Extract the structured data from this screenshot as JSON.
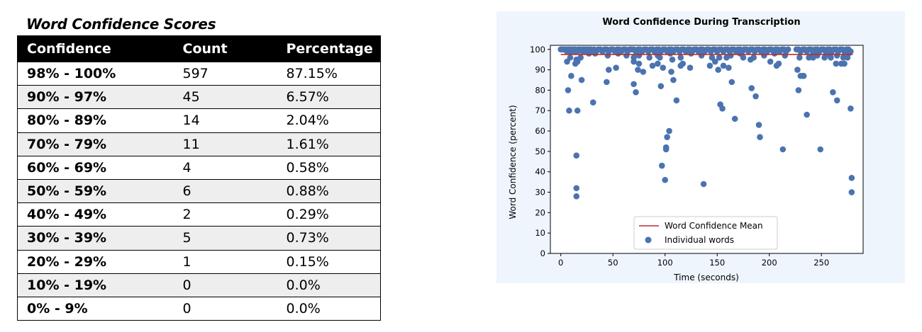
{
  "table": {
    "title": "Word Confidence Scores",
    "headers": [
      "Confidence",
      "Count",
      "Percentage"
    ],
    "rows": [
      {
        "range": "98% - 100%",
        "count": "597",
        "percentage": "87.15%"
      },
      {
        "range": "90% - 97%",
        "count": "45",
        "percentage": "6.57%"
      },
      {
        "range": "80% - 89%",
        "count": "14",
        "percentage": "2.04%"
      },
      {
        "range": "70% - 79%",
        "count": "11",
        "percentage": "1.61%"
      },
      {
        "range": "60% - 69%",
        "count": "4",
        "percentage": "0.58%"
      },
      {
        "range": "50% - 59%",
        "count": "6",
        "percentage": "0.88%"
      },
      {
        "range": "40% - 49%",
        "count": "2",
        "percentage": "0.29%"
      },
      {
        "range": "30% - 39%",
        "count": "5",
        "percentage": "0.73%"
      },
      {
        "range": "20% - 29%",
        "count": "1",
        "percentage": "0.15%"
      },
      {
        "range": "10% - 19%",
        "count": "0",
        "percentage": "0.0%"
      },
      {
        "range": "0% - 9%",
        "count": "0",
        "percentage": "0.0%"
      }
    ]
  },
  "chart_data": {
    "type": "scatter",
    "title": "Word Confidence During Transcription",
    "xlabel": "Time (seconds)",
    "ylabel": "Word Confidence (percent)",
    "xlim": [
      -10,
      290
    ],
    "ylim": [
      0,
      102
    ],
    "xticks": [
      0,
      50,
      100,
      150,
      200,
      250
    ],
    "yticks": [
      0,
      10,
      20,
      30,
      40,
      50,
      60,
      70,
      80,
      90,
      100
    ],
    "grid": false,
    "legend_position": "lower-center",
    "colors": {
      "points": "#4a73b0",
      "mean_line": "#c0282d",
      "background": "#eef5fd"
    },
    "series": [
      {
        "name": "Word Confidence Mean",
        "kind": "line",
        "x": [
          0,
          280
        ],
        "y": [
          97.5,
          97.5
        ]
      },
      {
        "name": "Individual words",
        "kind": "scatter",
        "points": [
          [
            0,
            100
          ],
          [
            1,
            100
          ],
          [
            2,
            100
          ],
          [
            3,
            100
          ],
          [
            5,
            100
          ],
          [
            6,
            99
          ],
          [
            7,
            100
          ],
          [
            8,
            100
          ],
          [
            9,
            99
          ],
          [
            10,
            100
          ],
          [
            12,
            100
          ],
          [
            13,
            99
          ],
          [
            14,
            100
          ],
          [
            16,
            99
          ],
          [
            17,
            100
          ],
          [
            18,
            100
          ],
          [
            20,
            100
          ],
          [
            21,
            99
          ],
          [
            22,
            100
          ],
          [
            24,
            100
          ],
          [
            25,
            99
          ],
          [
            26,
            100
          ],
          [
            28,
            100
          ],
          [
            29,
            100
          ],
          [
            30,
            99
          ],
          [
            32,
            100
          ],
          [
            34,
            99
          ],
          [
            36,
            100
          ],
          [
            38,
            100
          ],
          [
            40,
            99
          ],
          [
            42,
            100
          ],
          [
            44,
            100
          ],
          [
            46,
            99
          ],
          [
            48,
            100
          ],
          [
            50,
            100
          ],
          [
            52,
            99
          ],
          [
            54,
            100
          ],
          [
            56,
            100
          ],
          [
            58,
            99
          ],
          [
            60,
            100
          ],
          [
            62,
            100
          ],
          [
            64,
            99
          ],
          [
            66,
            100
          ],
          [
            68,
            100
          ],
          [
            70,
            100
          ],
          [
            72,
            99
          ],
          [
            74,
            100
          ],
          [
            76,
            100
          ],
          [
            78,
            99
          ],
          [
            80,
            100
          ],
          [
            82,
            100
          ],
          [
            84,
            99
          ],
          [
            86,
            100
          ],
          [
            88,
            100
          ],
          [
            90,
            99
          ],
          [
            92,
            100
          ],
          [
            94,
            100
          ],
          [
            96,
            99
          ],
          [
            98,
            100
          ],
          [
            100,
            100
          ],
          [
            102,
            99
          ],
          [
            104,
            100
          ],
          [
            106,
            100
          ],
          [
            108,
            99
          ],
          [
            110,
            100
          ],
          [
            112,
            100
          ],
          [
            114,
            99
          ],
          [
            116,
            100
          ],
          [
            118,
            100
          ],
          [
            120,
            99
          ],
          [
            122,
            100
          ],
          [
            124,
            100
          ],
          [
            126,
            99
          ],
          [
            128,
            100
          ],
          [
            130,
            100
          ],
          [
            132,
            99
          ],
          [
            134,
            100
          ],
          [
            136,
            100
          ],
          [
            138,
            99
          ],
          [
            140,
            100
          ],
          [
            142,
            100
          ],
          [
            144,
            99
          ],
          [
            146,
            100
          ],
          [
            148,
            100
          ],
          [
            150,
            99
          ],
          [
            152,
            100
          ],
          [
            154,
            100
          ],
          [
            156,
            99
          ],
          [
            158,
            100
          ],
          [
            160,
            100
          ],
          [
            162,
            99
          ],
          [
            164,
            100
          ],
          [
            166,
            100
          ],
          [
            168,
            99
          ],
          [
            170,
            100
          ],
          [
            172,
            100
          ],
          [
            174,
            99
          ],
          [
            176,
            100
          ],
          [
            178,
            100
          ],
          [
            180,
            99
          ],
          [
            182,
            100
          ],
          [
            184,
            100
          ],
          [
            186,
            99
          ],
          [
            188,
            100
          ],
          [
            190,
            100
          ],
          [
            192,
            99
          ],
          [
            194,
            100
          ],
          [
            196,
            100
          ],
          [
            198,
            99
          ],
          [
            200,
            100
          ],
          [
            202,
            100
          ],
          [
            204,
            99
          ],
          [
            206,
            100
          ],
          [
            208,
            100
          ],
          [
            210,
            99
          ],
          [
            212,
            100
          ],
          [
            214,
            100
          ],
          [
            216,
            99
          ],
          [
            218,
            100
          ],
          [
            226,
            100
          ],
          [
            228,
            100
          ],
          [
            230,
            99
          ],
          [
            232,
            100
          ],
          [
            234,
            100
          ],
          [
            236,
            99
          ],
          [
            238,
            100
          ],
          [
            240,
            100
          ],
          [
            242,
            99
          ],
          [
            244,
            100
          ],
          [
            246,
            100
          ],
          [
            248,
            99
          ],
          [
            250,
            100
          ],
          [
            252,
            100
          ],
          [
            254,
            99
          ],
          [
            256,
            100
          ],
          [
            258,
            100
          ],
          [
            260,
            99
          ],
          [
            262,
            100
          ],
          [
            264,
            100
          ],
          [
            266,
            99
          ],
          [
            268,
            100
          ],
          [
            270,
            100
          ],
          [
            272,
            99
          ],
          [
            274,
            100
          ],
          [
            276,
            100
          ],
          [
            278,
            99
          ],
          [
            6,
            94
          ],
          [
            9,
            96
          ],
          [
            14,
            93
          ],
          [
            15,
            95
          ],
          [
            19,
            96
          ],
          [
            27,
            98
          ],
          [
            33,
            98
          ],
          [
            45,
            97
          ],
          [
            55,
            98
          ],
          [
            63,
            97
          ],
          [
            70,
            96
          ],
          [
            75,
            97
          ],
          [
            85,
            96
          ],
          [
            93,
            97
          ],
          [
            105,
            98
          ],
          [
            115,
            96
          ],
          [
            125,
            98
          ],
          [
            135,
            97
          ],
          [
            145,
            96
          ],
          [
            163,
            97
          ],
          [
            172,
            98
          ],
          [
            185,
            96
          ],
          [
            195,
            97
          ],
          [
            205,
            98
          ],
          [
            215,
            97
          ],
          [
            229,
            96
          ],
          [
            241,
            97
          ],
          [
            245,
            98
          ],
          [
            253,
            96
          ],
          [
            259,
            98
          ],
          [
            265,
            97
          ],
          [
            271,
            96
          ],
          [
            276,
            98
          ],
          [
            7,
            80
          ],
          [
            8,
            70
          ],
          [
            10,
            87
          ],
          [
            15,
            48
          ],
          [
            15,
            32
          ],
          [
            15,
            28
          ],
          [
            16,
            94
          ],
          [
            16,
            70
          ],
          [
            20,
            85
          ],
          [
            31,
            74
          ],
          [
            44,
            84
          ],
          [
            46,
            90
          ],
          [
            53,
            91
          ],
          [
            70,
            83
          ],
          [
            70,
            94
          ],
          [
            72,
            79
          ],
          [
            74,
            90
          ],
          [
            75,
            93
          ],
          [
            79,
            89
          ],
          [
            88,
            92
          ],
          [
            93,
            93
          ],
          [
            95,
            96
          ],
          [
            96,
            82
          ],
          [
            97,
            43
          ],
          [
            98,
            91
          ],
          [
            100,
            36
          ],
          [
            101,
            51
          ],
          [
            101,
            52
          ],
          [
            102,
            57
          ],
          [
            104,
            60
          ],
          [
            106,
            89
          ],
          [
            107,
            95
          ],
          [
            108,
            85
          ],
          [
            111,
            75
          ],
          [
            115,
            92
          ],
          [
            117,
            93
          ],
          [
            124,
            91
          ],
          [
            137,
            34
          ],
          [
            143,
            92
          ],
          [
            148,
            94
          ],
          [
            151,
            90
          ],
          [
            152,
            96
          ],
          [
            153,
            73
          ],
          [
            155,
            71
          ],
          [
            156,
            92
          ],
          [
            159,
            96
          ],
          [
            161,
            91
          ],
          [
            164,
            84
          ],
          [
            167,
            66
          ],
          [
            175,
            96
          ],
          [
            182,
            95
          ],
          [
            183,
            81
          ],
          [
            187,
            77
          ],
          [
            190,
            63
          ],
          [
            191,
            57
          ],
          [
            201,
            94
          ],
          [
            207,
            92
          ],
          [
            209,
            93
          ],
          [
            213,
            51
          ],
          [
            227,
            90
          ],
          [
            228,
            80
          ],
          [
            230,
            87
          ],
          [
            232,
            87
          ],
          [
            233,
            87
          ],
          [
            236,
            68
          ],
          [
            238,
            96
          ],
          [
            242,
            96
          ],
          [
            246,
            97
          ],
          [
            249,
            51
          ],
          [
            258,
            97
          ],
          [
            259,
            96
          ],
          [
            261,
            79
          ],
          [
            264,
            93
          ],
          [
            265,
            75
          ],
          [
            269,
            93
          ],
          [
            272,
            93
          ],
          [
            275,
            96
          ],
          [
            278,
            71
          ],
          [
            279,
            37
          ],
          [
            279,
            30
          ]
        ]
      }
    ]
  }
}
